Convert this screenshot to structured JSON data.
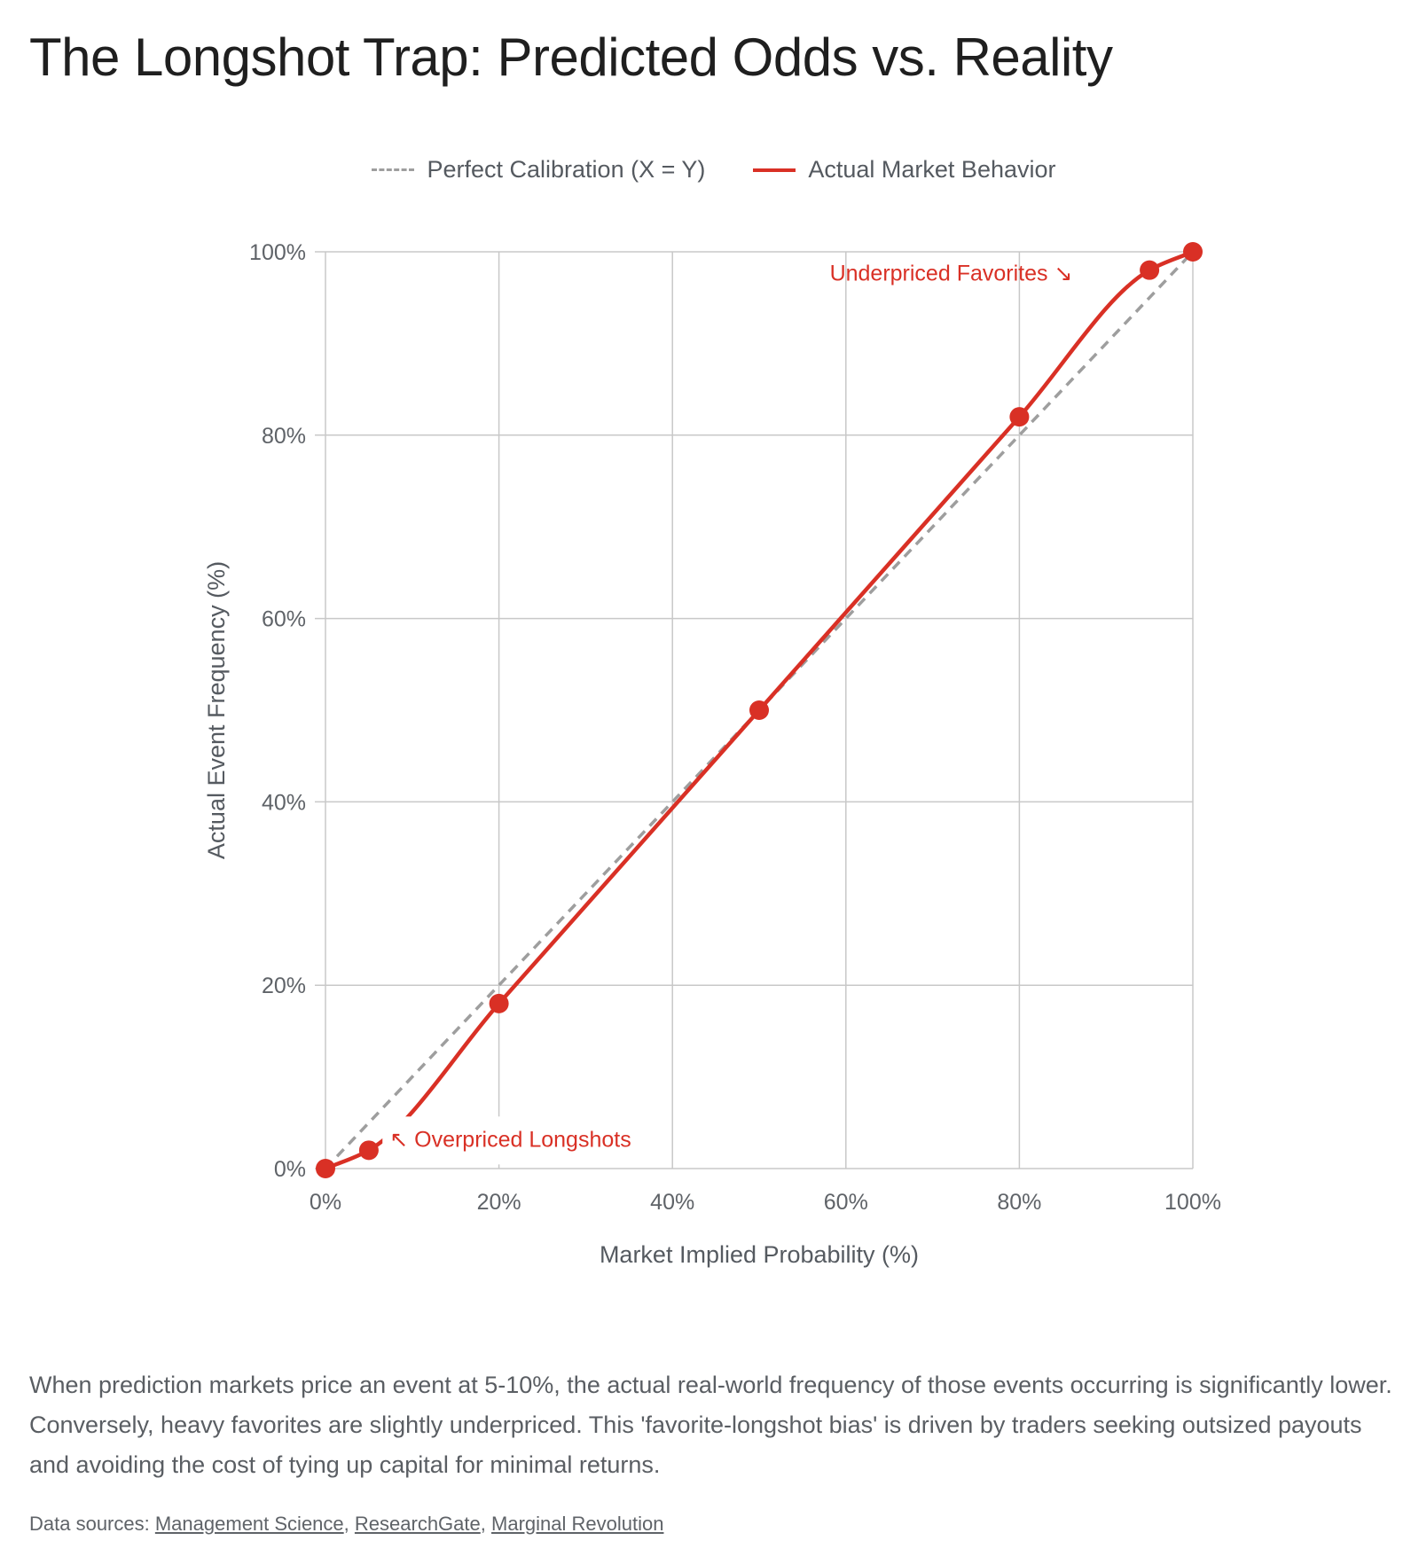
{
  "page": {
    "title": "The Longshot Trap: Predicted Odds vs. Reality",
    "description": "When prediction markets price an event at 5-10%, the actual real-world frequency of those events occurring is significantly lower. Conversely, heavy favorites are slightly underpriced. This 'favorite-longshot bias' is driven by traders seeking outsized payouts and avoiding the cost of tying up capital for minimal returns.",
    "sources_prefix": "Data sources:",
    "sources": [
      {
        "label": "Management Science"
      },
      {
        "label": "ResearchGate"
      },
      {
        "label": "Marginal Revolution"
      }
    ],
    "sources_separator": ","
  },
  "chart_data": {
    "type": "line",
    "xlabel": "Market Implied Probability (%)",
    "ylabel": "Actual Event Frequency (%)",
    "xlim": [
      0,
      100
    ],
    "ylim": [
      0,
      100
    ],
    "x_ticks": [
      0,
      20,
      40,
      60,
      80,
      100
    ],
    "y_ticks": [
      0,
      20,
      40,
      60,
      80,
      100
    ],
    "x_tick_labels": [
      "0%",
      "20%",
      "40%",
      "60%",
      "80%",
      "100%"
    ],
    "y_tick_labels": [
      "0%",
      "20%",
      "40%",
      "60%",
      "80%",
      "100%"
    ],
    "grid": true,
    "legend_position": "top-center",
    "series": [
      {
        "name": "Perfect Calibration (X = Y)",
        "style": "dashed",
        "color": "#9e9e9e",
        "x": [
          0,
          100
        ],
        "y": [
          0,
          100
        ]
      },
      {
        "name": "Actual Market Behavior",
        "style": "solid",
        "color": "#d93025",
        "markers": true,
        "x": [
          0,
          5,
          20,
          50,
          80,
          95,
          100
        ],
        "y": [
          0,
          2,
          18,
          50,
          82,
          98,
          100
        ]
      }
    ],
    "annotations": [
      {
        "text": "Underpriced Favorites ↘",
        "near_x": 80,
        "near_y": 98,
        "color": "#d93025"
      },
      {
        "text": "↖ Overpriced Longshots",
        "near_x": 8,
        "near_y": 2,
        "color": "#d93025"
      }
    ]
  }
}
